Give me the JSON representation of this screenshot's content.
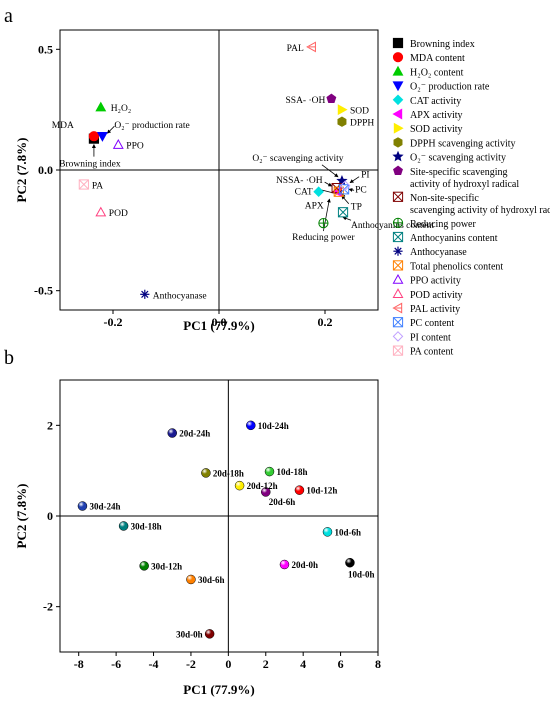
{
  "panels": {
    "a": "a",
    "b": "b"
  },
  "chart_data": [
    {
      "type": "scatter",
      "panel": "a",
      "title": "",
      "xlabel": "PC1 (77.9%)",
      "ylabel": "PC2 (7.8%)",
      "xlim": [
        -0.3,
        0.3
      ],
      "ylim": [
        -0.58,
        0.58
      ],
      "xticks": [
        "-0.2",
        "0.0",
        "0.2"
      ],
      "xtick_values": [
        -0.2,
        0.0,
        0.2
      ],
      "yticks": [
        "0.5",
        "0.0",
        "-0.5"
      ],
      "ytick_values": [
        0.5,
        0.0,
        -0.5
      ],
      "zero_lines": true,
      "legend_position": "right",
      "points": [
        {
          "id": "browning-index",
          "legend": "Browning index",
          "label": "Browning index",
          "x": -0.236,
          "y": 0.13,
          "color": "#000000",
          "marker": "square"
        },
        {
          "id": "mda",
          "legend": "MDA content",
          "label": "MDA",
          "x": -0.236,
          "y": 0.14,
          "color": "#ff0000",
          "marker": "circle"
        },
        {
          "id": "h2o2",
          "legend": "H₂O₂ content",
          "label": "H₂O₂",
          "x": -0.223,
          "y": 0.26,
          "color": "#00cc00",
          "marker": "triangle-up"
        },
        {
          "id": "o2-rate",
          "legend": "O₂⁻ production rate",
          "label": "O₂⁻ production rate",
          "x": -0.22,
          "y": 0.14,
          "color": "#0000ff",
          "marker": "triangle-down"
        },
        {
          "id": "cat",
          "legend": "CAT activity",
          "label": "CAT",
          "x": 0.188,
          "y": -0.09,
          "color": "#00e0e0",
          "marker": "diamond"
        },
        {
          "id": "apx",
          "legend": "APX activity",
          "label": "APX",
          "x": 0.224,
          "y": -0.09,
          "color": "#ff00ff",
          "marker": "triangle-left"
        },
        {
          "id": "sod",
          "legend": "SOD activity",
          "label": "SOD",
          "x": 0.232,
          "y": 0.25,
          "color": "#ffee00",
          "marker": "triangle-right"
        },
        {
          "id": "dpph",
          "legend": "DPPH scavenging activity",
          "label": "DPPH",
          "x": 0.232,
          "y": 0.2,
          "color": "#808000",
          "marker": "hexagon"
        },
        {
          "id": "o2-scav",
          "legend": "O₂⁻ scavenging activity",
          "label": "O₂⁻ scavenging activity",
          "x": 0.232,
          "y": -0.045,
          "color": "#000080",
          "marker": "star"
        },
        {
          "id": "ssa-oh",
          "legend": "Site-specific scavenging activity of hydroxyl  radical",
          "label": "SSA- ·OH",
          "x": 0.212,
          "y": 0.295,
          "color": "#800080",
          "marker": "pentagon"
        },
        {
          "id": "nssa-oh",
          "legend": "Non-site-specific scavenging activity of hydroxyl radical",
          "label": "NSSA- ·OH",
          "x": 0.222,
          "y": -0.075,
          "color": "#800000",
          "marker": "boxed-x"
        },
        {
          "id": "reducing-power",
          "legend": "Reducing power",
          "label": "Reducing power",
          "x": 0.197,
          "y": -0.22,
          "color": "#008000",
          "marker": "circle-plus"
        },
        {
          "id": "anthocyanins",
          "legend": "Anthocyanins content",
          "label": "Anthocyanins content",
          "x": 0.234,
          "y": -0.175,
          "color": "#008080",
          "marker": "boxed-x"
        },
        {
          "id": "anthocyanase",
          "legend": "Anthocyanase",
          "label": "Anthocyanase",
          "x": -0.14,
          "y": -0.515,
          "color": "#000080",
          "marker": "asterisk"
        },
        {
          "id": "tp",
          "legend": "Total phenolics content",
          "label": "TP",
          "x": 0.226,
          "y": -0.09,
          "color": "#ff8000",
          "marker": "boxed-x"
        },
        {
          "id": "ppo",
          "legend": "PPO activity",
          "label": "PPO",
          "x": -0.19,
          "y": 0.105,
          "color": "#8000ff",
          "marker": "triangle-up-open"
        },
        {
          "id": "pod",
          "legend": "POD activity",
          "label": "POD",
          "x": -0.223,
          "y": -0.175,
          "color": "#ff4080",
          "marker": "triangle-up-open"
        },
        {
          "id": "pal",
          "legend": "PAL activity",
          "label": "PAL",
          "x": 0.175,
          "y": 0.51,
          "color": "#ff6060",
          "marker": "triangle-left-open"
        },
        {
          "id": "pc",
          "legend": "PC content",
          "label": "PC",
          "x": 0.236,
          "y": -0.08,
          "color": "#4080ff",
          "marker": "boxed-x"
        },
        {
          "id": "pi",
          "legend": "PI content",
          "label": "PI",
          "x": 0.238,
          "y": -0.065,
          "color": "#c0a0ff",
          "marker": "diamond-open"
        },
        {
          "id": "pa",
          "legend": "PA content",
          "label": "PA",
          "x": -0.255,
          "y": -0.06,
          "color": "#ffb0c0",
          "marker": "boxed-x"
        }
      ]
    },
    {
      "type": "scatter",
      "panel": "b",
      "title": "",
      "xlabel": "PC1 (77.9%)",
      "ylabel": "PC2 (7.8%)",
      "xlim": [
        -9,
        8
      ],
      "ylim": [
        -3,
        3
      ],
      "xticks": [
        "-8",
        "-6",
        "-4",
        "-2",
        "0",
        "2",
        "4",
        "6",
        "8"
      ],
      "xtick_values": [
        -8,
        -6,
        -4,
        -2,
        0,
        2,
        4,
        6,
        8
      ],
      "yticks": [
        "2",
        "0",
        "-2"
      ],
      "ytick_values": [
        2,
        0,
        -2
      ],
      "zero_lines": true,
      "points": [
        {
          "label": "10d-24h",
          "x": 1.2,
          "y": 2.0,
          "color": "#0000ff"
        },
        {
          "label": "20d-24h",
          "x": -3.0,
          "y": 1.83,
          "color": "#1a1a90"
        },
        {
          "label": "30d-24h",
          "x": -7.8,
          "y": 0.22,
          "color": "#2040b0"
        },
        {
          "label": "10d-18h",
          "x": 2.2,
          "y": 0.98,
          "color": "#33cc33"
        },
        {
          "label": "20d-18h",
          "x": -1.2,
          "y": 0.95,
          "color": "#808000"
        },
        {
          "label": "30d-18h",
          "x": -5.6,
          "y": -0.22,
          "color": "#008080"
        },
        {
          "label": "20d-12h",
          "x": 0.6,
          "y": 0.67,
          "color": "#ffee00"
        },
        {
          "label": "10d-12h",
          "x": 3.8,
          "y": 0.57,
          "color": "#ff0000"
        },
        {
          "label": "30d-12h",
          "x": -4.5,
          "y": -1.1,
          "color": "#008000"
        },
        {
          "label": "20d-6h",
          "x": 2.0,
          "y": 0.53,
          "color": "#800080"
        },
        {
          "label": "10d-6h",
          "x": 5.3,
          "y": -0.35,
          "color": "#00e0e0"
        },
        {
          "label": "30d-6h",
          "x": -2.0,
          "y": -1.4,
          "color": "#ff8000"
        },
        {
          "label": "20d-0h",
          "x": 3.0,
          "y": -1.07,
          "color": "#ff00ff"
        },
        {
          "label": "10d-0h",
          "x": 6.5,
          "y": -1.03,
          "color": "#000000"
        },
        {
          "label": "30d-0h",
          "x": -1.0,
          "y": -2.6,
          "color": "#800000"
        }
      ]
    }
  ]
}
